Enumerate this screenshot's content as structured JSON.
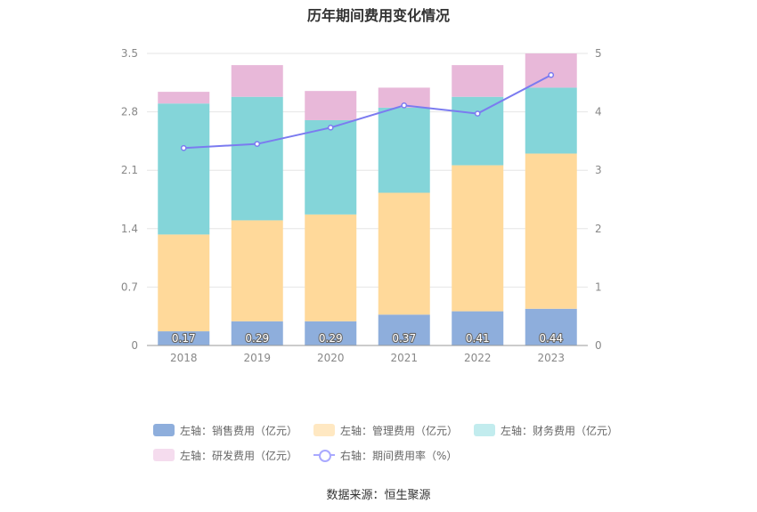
{
  "title": "历年期间费用变化情况",
  "source": "数据来源：恒生聚源",
  "chart_data": {
    "type": "bar",
    "stacked": true,
    "categories": [
      "2018",
      "2019",
      "2020",
      "2021",
      "2022",
      "2023"
    ],
    "left_axis": {
      "min": 0,
      "max": 3.5,
      "ticks": [
        "0",
        "0.7",
        "1.4",
        "2.1",
        "2.8",
        "3.5"
      ]
    },
    "right_axis": {
      "min": 0,
      "max": 5,
      "ticks": [
        "0",
        "1",
        "2",
        "3",
        "4",
        "5"
      ]
    },
    "series": [
      {
        "name": "左轴：销售费用（亿元）",
        "axis": "left",
        "color": "#8eaedc",
        "legend_color": "#8eaedc",
        "values": [
          0.17,
          0.29,
          0.29,
          0.37,
          0.41,
          0.44
        ],
        "labels": [
          "0.17",
          "0.29",
          "0.29",
          "0.37",
          "0.41",
          "0.44"
        ]
      },
      {
        "name": "左轴：管理费用（亿元）",
        "axis": "left",
        "color": "#ffd99a",
        "legend_color": "#ffe8c2",
        "values": [
          1.16,
          1.21,
          1.28,
          1.46,
          1.75,
          1.86
        ]
      },
      {
        "name": "左轴：财务费用（亿元）",
        "axis": "left",
        "color": "#84d5d9",
        "legend_color": "#c2ecee",
        "values": [
          1.57,
          1.48,
          1.13,
          1.02,
          0.82,
          0.79
        ]
      },
      {
        "name": "左轴：研发费用（亿元）",
        "axis": "left",
        "color": "#e8b8d9",
        "legend_color": "#f5dcee",
        "values": [
          0.14,
          0.38,
          0.35,
          0.24,
          0.38,
          0.41
        ]
      },
      {
        "name": "右轴：期间费用率（%）",
        "axis": "right",
        "type": "line",
        "color": "#7b7bf0",
        "values": [
          3.38,
          3.45,
          3.73,
          4.11,
          3.97,
          4.63
        ]
      }
    ]
  }
}
